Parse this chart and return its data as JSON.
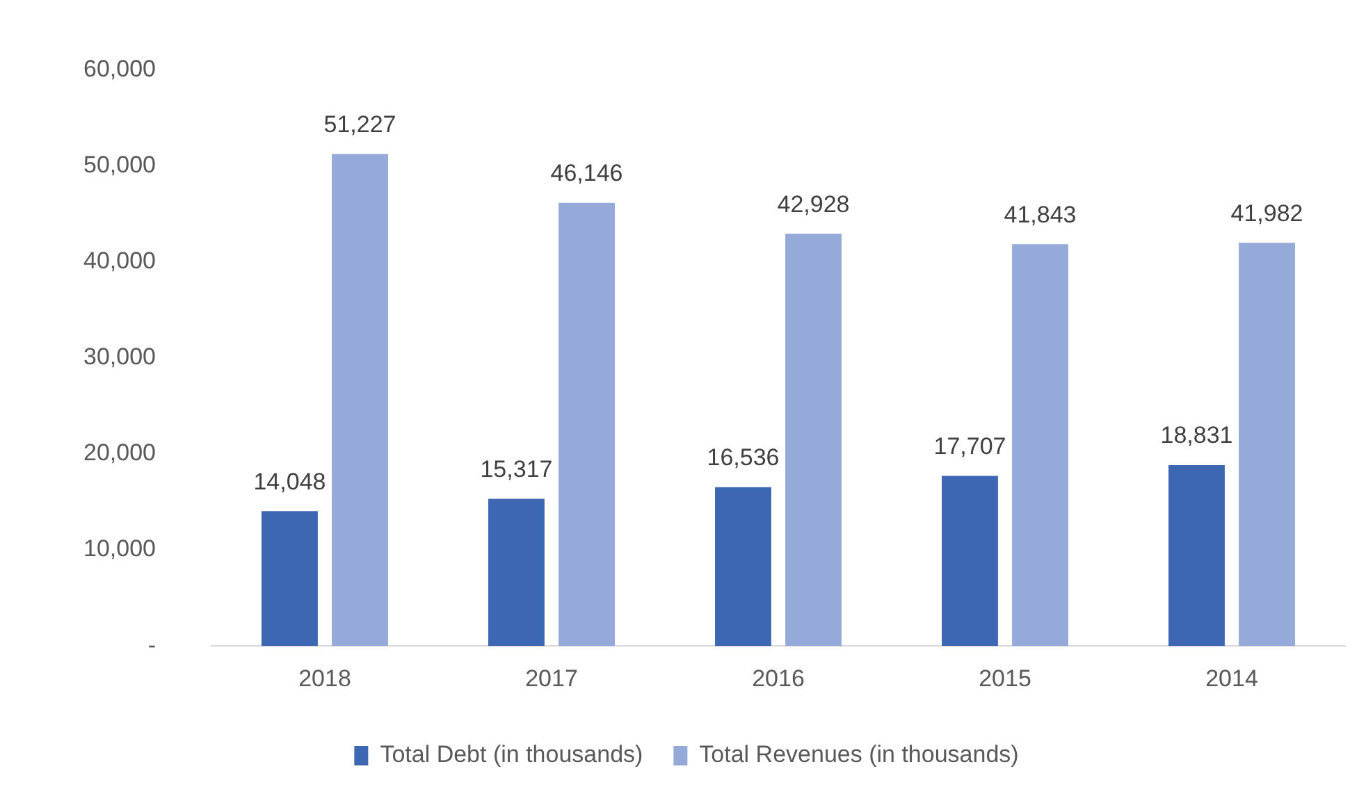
{
  "chart_data": {
    "type": "bar",
    "categories": [
      "2018",
      "2017",
      "2016",
      "2015",
      "2014"
    ],
    "series": [
      {
        "name": "Total Debt (in thousands)",
        "color": "#3d66b3",
        "values": [
          14048,
          15317,
          16536,
          17707,
          18831
        ],
        "value_labels": [
          "14,048",
          "15,317",
          "16,536",
          "17,707",
          "18,831"
        ]
      },
      {
        "name": "Total Revenues (in thousands)",
        "color": "#95aad9",
        "values": [
          51227,
          46146,
          42928,
          41843,
          41982
        ],
        "value_labels": [
          "51,227",
          "46,146",
          "42,928",
          "41,843",
          "41,982"
        ]
      }
    ],
    "ylim": [
      0,
      60000
    ],
    "yticks": [
      {
        "value": 0,
        "label": "-"
      },
      {
        "value": 10000,
        "label": "10,000"
      },
      {
        "value": 20000,
        "label": "20,000"
      },
      {
        "value": 30000,
        "label": "30,000"
      },
      {
        "value": 40000,
        "label": "40,000"
      },
      {
        "value": 50000,
        "label": "50,000"
      },
      {
        "value": 60000,
        "label": "60,000"
      }
    ],
    "grid": false,
    "legend": "bottom"
  }
}
